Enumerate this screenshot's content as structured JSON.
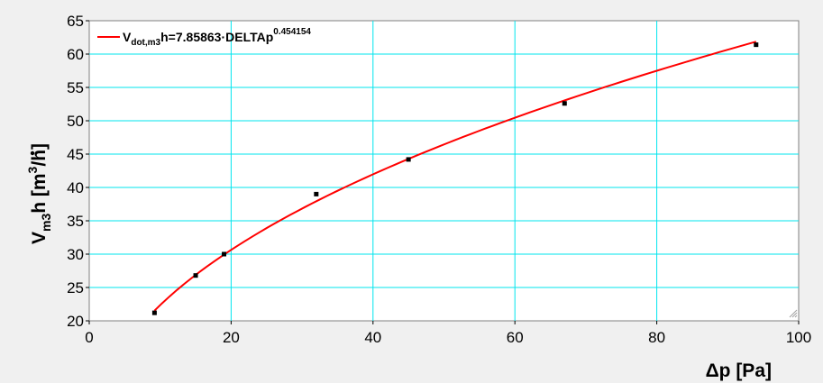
{
  "chart_data": {
    "type": "scatter",
    "xlabel": "Δp  [Pa]",
    "ylabel": {
      "main": "V",
      "sub": "m3",
      "rest": "h  [m",
      "sup": "3",
      "end": "/h]"
    },
    "xlim": [
      0,
      100
    ],
    "ylim": [
      20,
      65
    ],
    "x_ticks": [
      0,
      20,
      40,
      60,
      80,
      100
    ],
    "y_ticks": [
      20,
      25,
      30,
      35,
      40,
      45,
      50,
      55,
      60,
      65
    ],
    "grid": true,
    "legend_position": "top-left",
    "series": [
      {
        "kind": "points",
        "marker": "square",
        "color": "#000000",
        "x": [
          9.2,
          15.0,
          19.0,
          32.0,
          45.0,
          67.0,
          94.0
        ],
        "y": [
          21.2,
          26.8,
          30.0,
          39.0,
          44.2,
          52.6,
          61.4
        ]
      },
      {
        "kind": "fit",
        "color": "#ff0000",
        "equation": {
          "lhs_main": "V",
          "lhs_sub": "dot,m3",
          "lhs_rest": "h=7.85863·DELTAp",
          "exponent": "0.454154"
        },
        "coefficient": 7.85863,
        "power": 0.454154,
        "x_range": [
          9.2,
          94.0
        ]
      }
    ]
  }
}
